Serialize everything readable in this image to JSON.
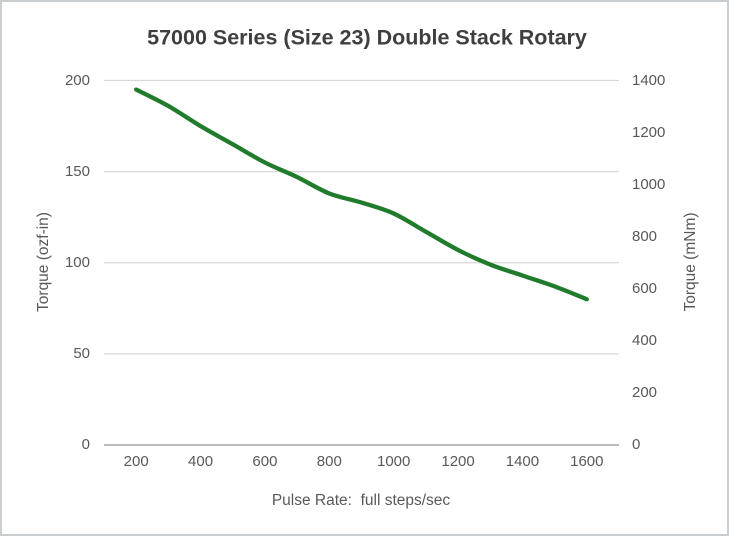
{
  "chart_data": {
    "type": "line",
    "title": "57000 Series (Size 23) Double Stack Rotary",
    "xlabel": "Pulse Rate:  full steps/sec",
    "ylabel_left": "Torque (ozf-in)",
    "ylabel_right": "Torque (mNm)",
    "x": [
      200,
      300,
      400,
      500,
      600,
      700,
      800,
      900,
      1000,
      1100,
      1200,
      1300,
      1400,
      1500,
      1600
    ],
    "series": [
      {
        "name": "Torque curve",
        "unit": "ozf-in",
        "values": [
          195,
          186,
          175,
          165,
          155,
          147,
          138,
          133,
          127,
          117,
          107,
          99,
          93,
          87,
          80
        ]
      }
    ],
    "x_ticks": [
      200,
      400,
      600,
      800,
      1000,
      1200,
      1400,
      1600
    ],
    "y_left_ticks": [
      0,
      50,
      100,
      150,
      200
    ],
    "y_right_ticks": [
      0,
      200,
      400,
      600,
      800,
      1000,
      1200,
      1400
    ],
    "xlim": [
      100,
      1700
    ],
    "ylim_left": [
      0,
      200
    ],
    "ylim_right": [
      0,
      1400
    ],
    "grid": "horizontal",
    "legend": "none",
    "colors": {
      "line": "#217b2d",
      "grid": "#d9d9d9",
      "axis": "#b9bcbf",
      "title_text": "#3f3f3f",
      "label_text": "#595959"
    }
  }
}
